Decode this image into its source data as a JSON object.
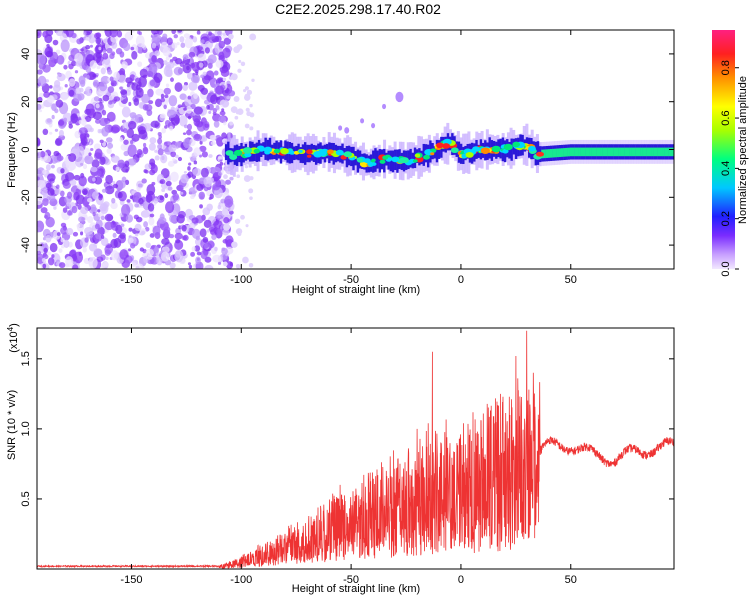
{
  "title": "C2E2.2025.298.17.40.R02",
  "chart_data": [
    {
      "type": "heatmap",
      "xlabel": "Height of straight line (km)",
      "ylabel": "Frequency (Hz)",
      "xlim": [
        -193,
        97
      ],
      "ylim": [
        -50,
        50
      ],
      "xticks": [
        -150,
        -100,
        -50,
        0,
        50
      ],
      "yticks": [
        -40,
        -20,
        0,
        20,
        40
      ],
      "colorbar": {
        "label": "Normalized spectral amplitude",
        "range": [
          0.0,
          0.95
        ],
        "ticks": [
          0.0,
          0.2,
          0.4,
          0.6,
          0.8
        ],
        "tick_labels": [
          "0.0",
          "0.2",
          "0.4",
          "0.6",
          "0.8"
        ]
      },
      "ridge_frequency_hz": [
        {
          "x": -105,
          "y": -3
        },
        {
          "x": -100,
          "y": -2
        },
        {
          "x": -90,
          "y": 0
        },
        {
          "x": -80,
          "y": -1
        },
        {
          "x": -70,
          "y": -2
        },
        {
          "x": -60,
          "y": -1
        },
        {
          "x": -50,
          "y": -3
        },
        {
          "x": -42,
          "y": -6
        },
        {
          "x": -35,
          "y": -4
        },
        {
          "x": -25,
          "y": -5
        },
        {
          "x": -15,
          "y": -2
        },
        {
          "x": -5,
          "y": 3
        },
        {
          "x": 0,
          "y": -2
        },
        {
          "x": 10,
          "y": 0
        },
        {
          "x": 20,
          "y": 0
        },
        {
          "x": 30,
          "y": 2
        },
        {
          "x": 35,
          "y": -2
        },
        {
          "x": 50,
          "y": -1
        },
        {
          "x": 70,
          "y": -1
        },
        {
          "x": 95,
          "y": -1
        }
      ],
      "noise_region_x": [
        -193,
        -108
      ]
    },
    {
      "type": "line",
      "xlabel": "Height of straight line (km)",
      "ylabel": "SNR (10 * v/v)",
      "scale_note": "(x10",
      "scale_exponent": "4",
      "xlim": [
        -193,
        97
      ],
      "ylim": [
        0,
        1.72
      ],
      "xticks": [
        -150,
        -100,
        -50,
        0,
        50
      ],
      "yticks": [
        0.5,
        1.0,
        1.5
      ],
      "ytick_labels": [
        "0.5",
        "1.0",
        "1.5"
      ],
      "series": [
        {
          "name": "SNR",
          "color": "#ee3333",
          "envelope": [
            {
              "x": -193,
              "y": 0.02
            },
            {
              "x": -110,
              "y": 0.02
            },
            {
              "x": -100,
              "y": 0.06
            },
            {
              "x": -90,
              "y": 0.12
            },
            {
              "x": -80,
              "y": 0.2
            },
            {
              "x": -70,
              "y": 0.28
            },
            {
              "x": -60,
              "y": 0.34
            },
            {
              "x": -50,
              "y": 0.4
            },
            {
              "x": -40,
              "y": 0.48
            },
            {
              "x": -30,
              "y": 0.55
            },
            {
              "x": -20,
              "y": 0.62
            },
            {
              "x": -10,
              "y": 0.68
            },
            {
              "x": 0,
              "y": 0.72
            },
            {
              "x": 10,
              "y": 0.78
            },
            {
              "x": 20,
              "y": 0.86
            },
            {
              "x": 30,
              "y": 0.9
            },
            {
              "x": 36,
              "y": 0.84
            },
            {
              "x": 40,
              "y": 0.88
            },
            {
              "x": 50,
              "y": 0.88
            },
            {
              "x": 60,
              "y": 0.82
            },
            {
              "x": 70,
              "y": 0.78
            },
            {
              "x": 80,
              "y": 0.84
            },
            {
              "x": 97,
              "y": 0.88
            }
          ],
          "spikes": [
            {
              "x": -13,
              "y": 1.55
            },
            {
              "x": -20,
              "y": 1.0
            },
            {
              "x": 25,
              "y": 1.52
            },
            {
              "x": 30,
              "y": 1.7
            },
            {
              "x": 33,
              "y": 1.4
            },
            {
              "x": 18,
              "y": 1.25
            }
          ]
        }
      ]
    }
  ]
}
